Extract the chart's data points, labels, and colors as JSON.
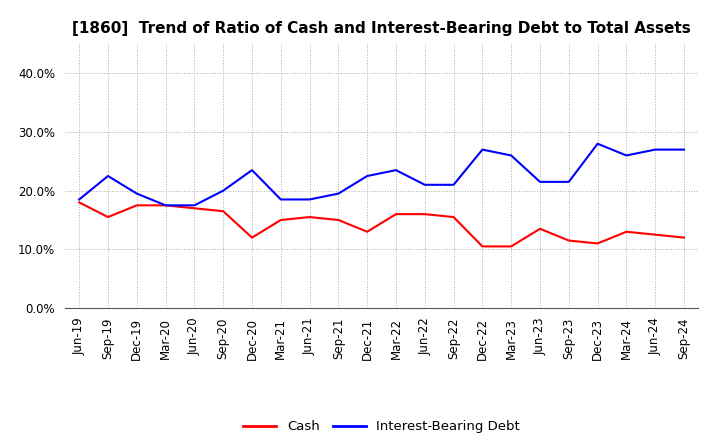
{
  "title": "[1860]  Trend of Ratio of Cash and Interest-Bearing Debt to Total Assets",
  "labels": [
    "Jun-19",
    "Sep-19",
    "Dec-19",
    "Mar-20",
    "Jun-20",
    "Sep-20",
    "Dec-20",
    "Mar-21",
    "Jun-21",
    "Sep-21",
    "Dec-21",
    "Mar-22",
    "Jun-22",
    "Sep-22",
    "Dec-22",
    "Mar-23",
    "Jun-23",
    "Sep-23",
    "Dec-23",
    "Mar-24",
    "Jun-24",
    "Sep-24"
  ],
  "cash": [
    18.0,
    15.5,
    17.5,
    17.5,
    17.0,
    16.5,
    12.0,
    15.0,
    15.5,
    15.0,
    13.0,
    16.0,
    16.0,
    15.5,
    10.5,
    10.5,
    13.5,
    11.5,
    11.0,
    13.0,
    12.5,
    12.0
  ],
  "interest_bearing_debt": [
    18.5,
    22.5,
    19.5,
    17.5,
    17.5,
    20.0,
    23.5,
    18.5,
    18.5,
    19.5,
    22.5,
    23.5,
    21.0,
    21.0,
    27.0,
    26.0,
    21.5,
    21.5,
    28.0,
    26.0,
    27.0,
    27.0
  ],
  "cash_color": "#ff0000",
  "debt_color": "#0000ff",
  "ylim": [
    0,
    45
  ],
  "yticks": [
    0.0,
    10.0,
    20.0,
    30.0,
    40.0
  ],
  "ytick_labels": [
    "0.0%",
    "10.0%",
    "20.0%",
    "30.0%",
    "40.0%"
  ],
  "legend_cash": "Cash",
  "legend_debt": "Interest-Bearing Debt",
  "background_color": "#ffffff",
  "plot_bg_color": "#ffffff",
  "grid_color": "#aaaaaa",
  "title_fontsize": 11,
  "tick_fontsize": 8.5,
  "legend_fontsize": 9.5
}
